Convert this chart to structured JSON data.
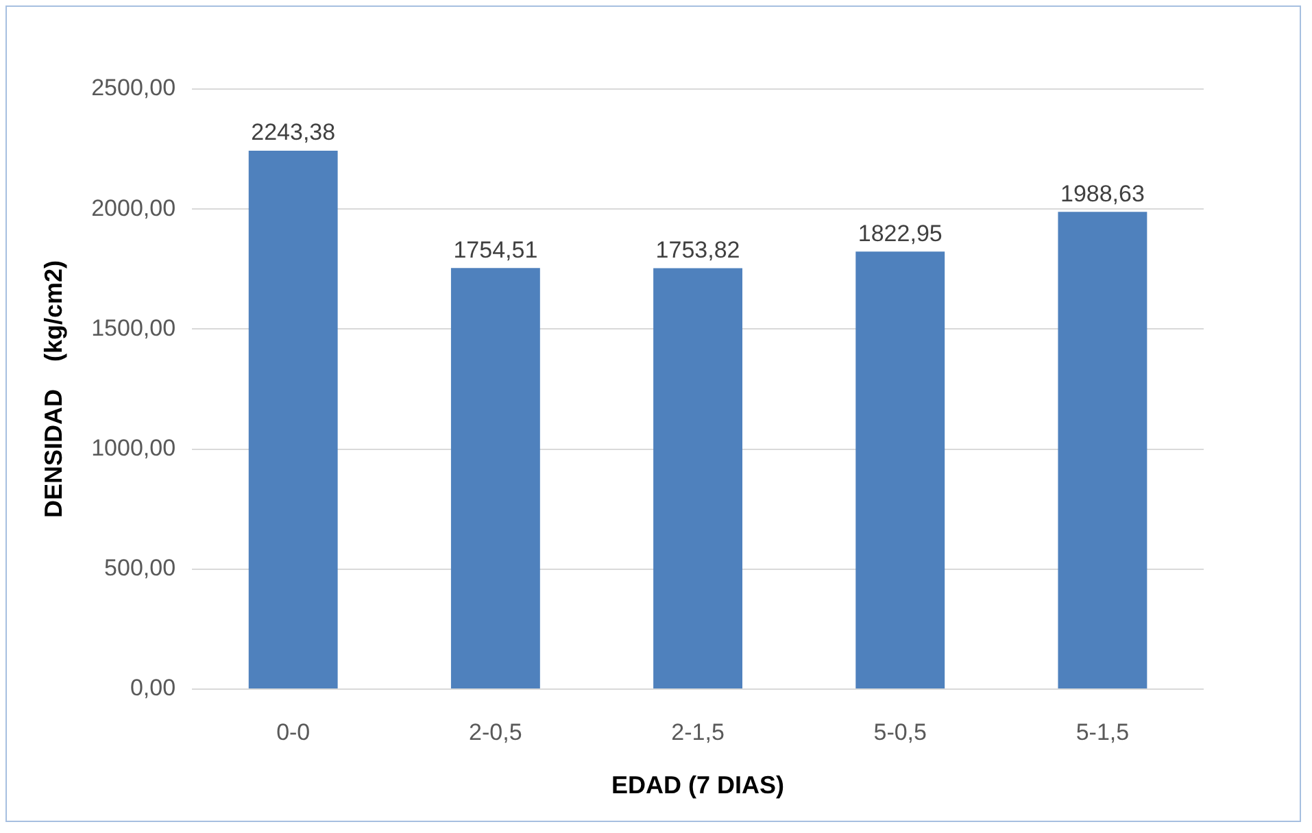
{
  "chart_data": {
    "type": "bar",
    "xlabel": "EDAD (7 DIAS)",
    "ylabel": "DENSIDAD    (kg/cm2)",
    "categories": [
      "0-0",
      "2-0,5",
      "2-1,5",
      "5-0,5",
      "5-1,5"
    ],
    "values": [
      2243.38,
      1754.51,
      1753.82,
      1822.95,
      1988.63
    ],
    "value_labels": [
      "2243,38",
      "1754,51",
      "1753,82",
      "1822,95",
      "1988,63"
    ],
    "color": "#4f81bd",
    "ylim": [
      0,
      2500
    ],
    "yticks": [
      {
        "value": 0,
        "label": "0,00"
      },
      {
        "value": 500,
        "label": "500,00"
      },
      {
        "value": 1000,
        "label": "1000,00"
      },
      {
        "value": 1500,
        "label": "1500,00"
      },
      {
        "value": 2000,
        "label": "2000,00"
      },
      {
        "value": 2500,
        "label": "2500,00"
      }
    ],
    "grid": "y",
    "legend": false
  }
}
